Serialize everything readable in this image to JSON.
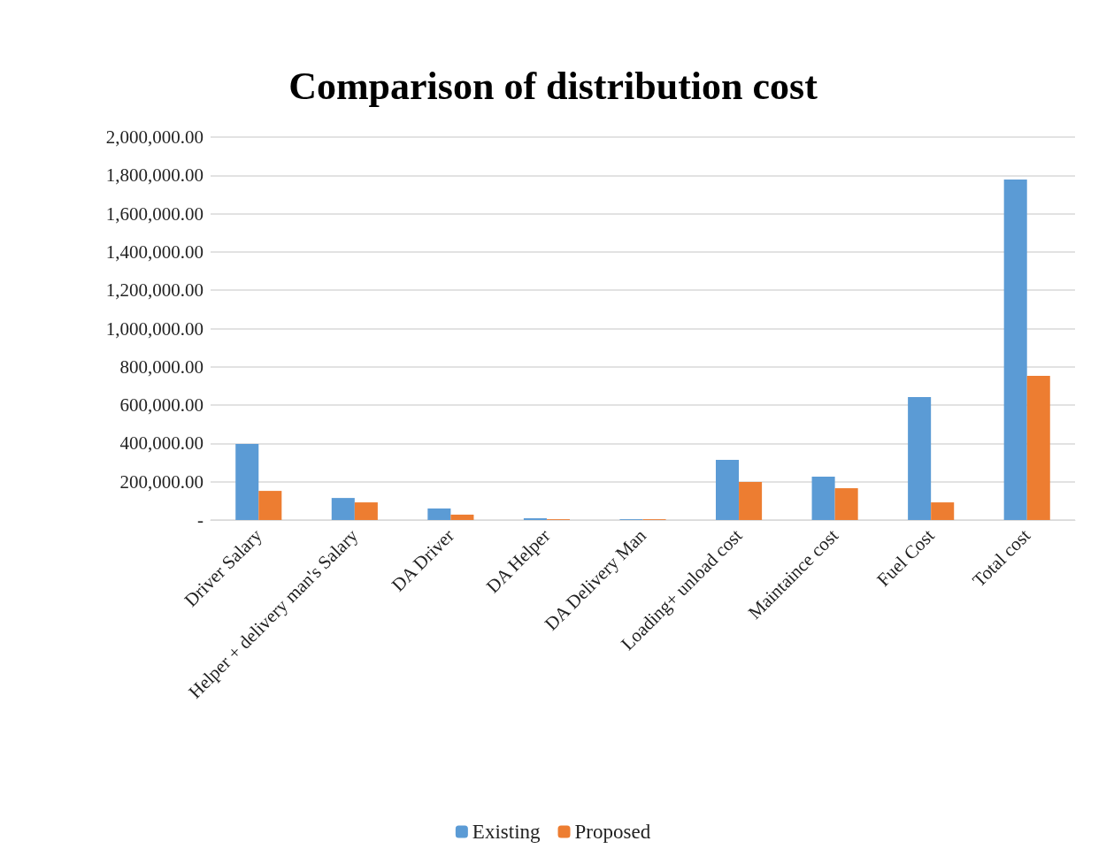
{
  "chart_data": {
    "type": "bar",
    "title": "Comparison of distribution cost",
    "categories": [
      "Driver Salary",
      "Helper + delivery man's Salary",
      "DA Driver",
      "DA Helper",
      "DA Delivery Man",
      "Loading+ unload cost",
      "Maintaince cost",
      "Fuel Cost",
      "Total cost"
    ],
    "series": [
      {
        "name": "Existing",
        "color": "#5b9bd5",
        "values": [
          397000,
          115000,
          60000,
          9000,
          4000,
          314000,
          226000,
          642000,
          1778000
        ]
      },
      {
        "name": "Proposed",
        "color": "#ed7d31",
        "values": [
          152000,
          92000,
          28000,
          4000,
          4000,
          199000,
          166000,
          92000,
          753000
        ]
      }
    ],
    "ylim": [
      0,
      2000000
    ],
    "yticks": [
      {
        "value": 0,
        "label": "-"
      },
      {
        "value": 200000,
        "label": "200,000.00"
      },
      {
        "value": 400000,
        "label": "400,000.00"
      },
      {
        "value": 600000,
        "label": "600,000.00"
      },
      {
        "value": 800000,
        "label": "800,000.00"
      },
      {
        "value": 1000000,
        "label": "1,000,000.00"
      },
      {
        "value": 1200000,
        "label": "1,200,000.00"
      },
      {
        "value": 1400000,
        "label": "1,400,000.00"
      },
      {
        "value": 1600000,
        "label": "1,600,000.00"
      },
      {
        "value": 1800000,
        "label": "1,800,000.00"
      },
      {
        "value": 2000000,
        "label": "2,000,000.00"
      }
    ],
    "grid": "y",
    "legend": "bottom"
  }
}
